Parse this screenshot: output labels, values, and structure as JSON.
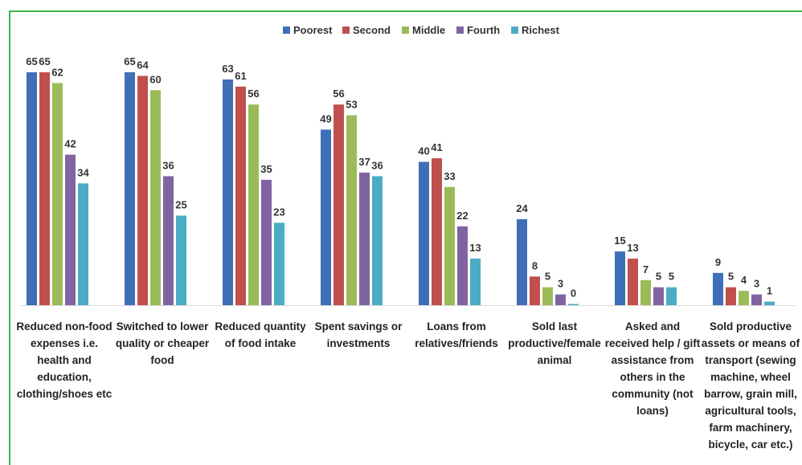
{
  "chart_data": {
    "type": "bar",
    "categories": [
      "Reduced non-food expenses i.e. health and education, clothing/shoes etc",
      "Switched to lower quality or cheaper food",
      "Reduced quantity of food intake",
      "Spent savings or investments",
      "Loans from relatives/friends",
      "Sold last productive/female animal",
      "Asked and received help / gift assistance from others in the community (not loans)",
      "Sold productive assets or means of transport (sewing machine, wheel barrow, grain mill, agricultural tools, farm machinery, bicycle, car etc.)"
    ],
    "series": [
      {
        "name": "Poorest",
        "color": "#3f6fb6",
        "values": [
          65,
          65,
          63,
          49,
          40,
          24,
          15,
          9
        ]
      },
      {
        "name": "Second",
        "color": "#c0504d",
        "values": [
          65,
          64,
          61,
          56,
          41,
          8,
          13,
          5
        ]
      },
      {
        "name": "Middle",
        "color": "#9bbb59",
        "values": [
          62,
          60,
          56,
          53,
          33,
          5,
          7,
          4
        ]
      },
      {
        "name": "Fourth",
        "color": "#8064a2",
        "values": [
          42,
          36,
          35,
          37,
          22,
          3,
          5,
          3
        ]
      },
      {
        "name": "Richest",
        "color": "#4bacc6",
        "values": [
          34,
          25,
          23,
          36,
          13,
          0,
          5,
          1
        ]
      }
    ],
    "legend": "top"
  }
}
